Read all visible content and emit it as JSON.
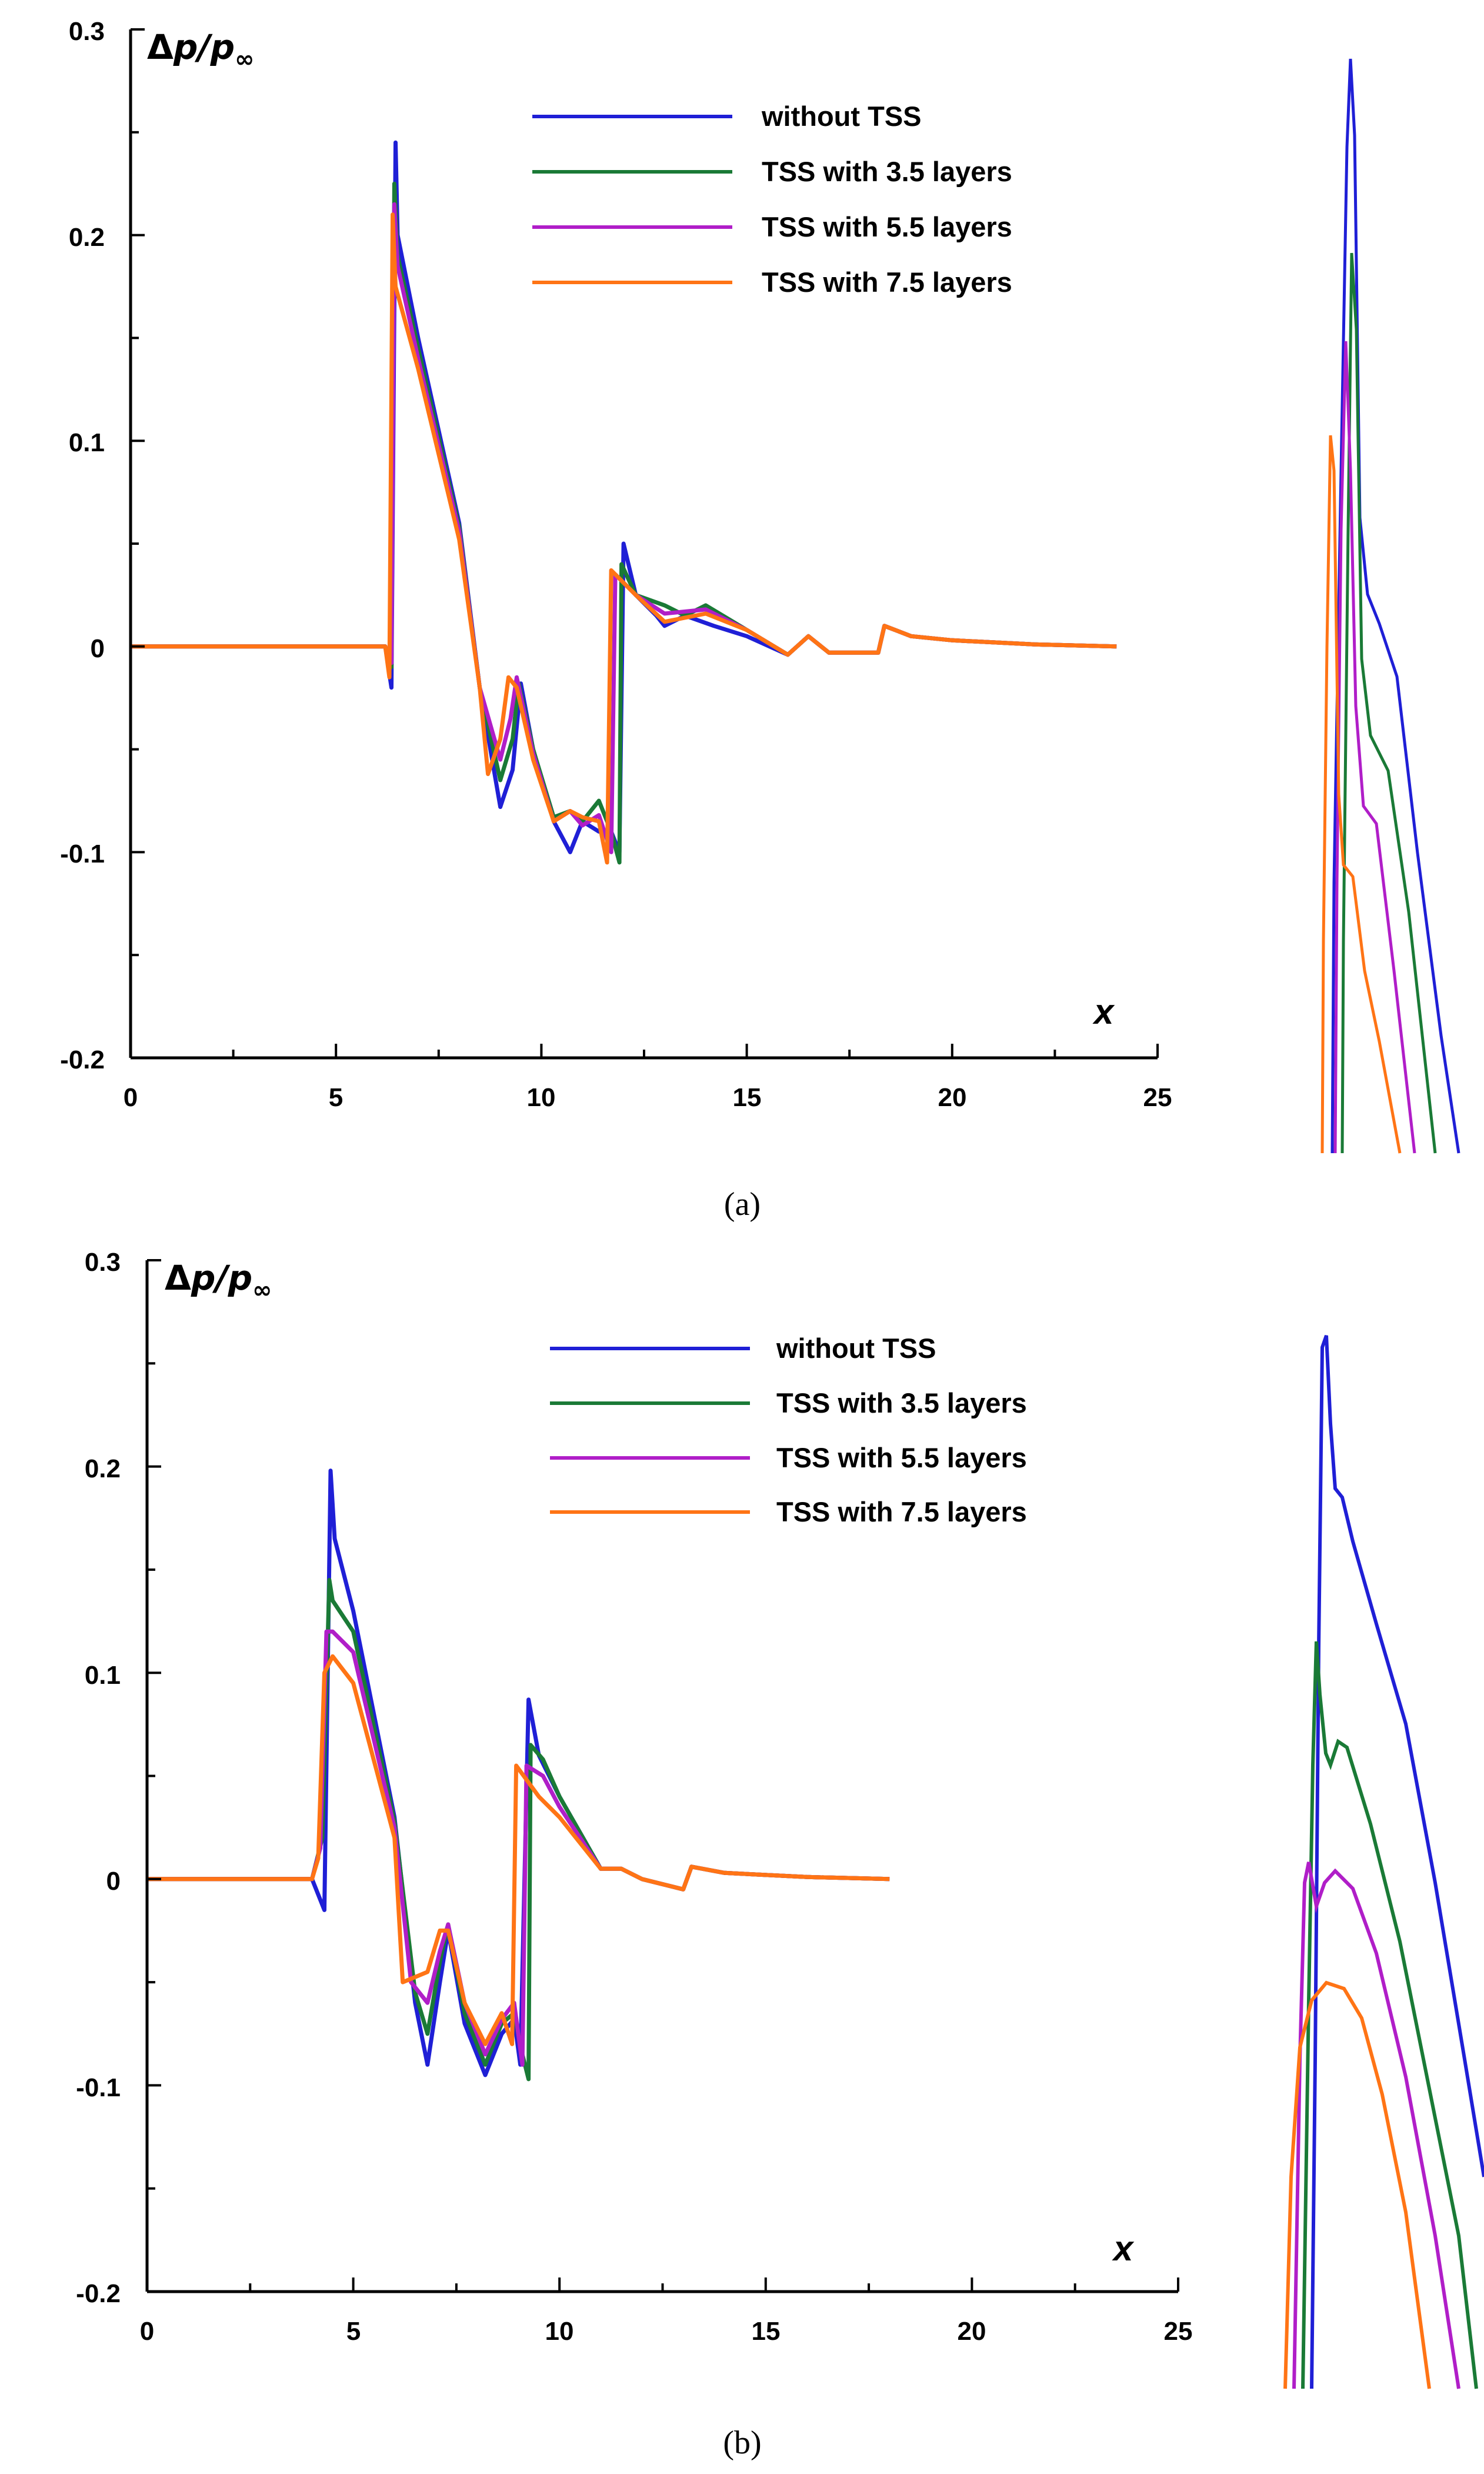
{
  "chart_data": [
    {
      "type": "line",
      "panel": "a",
      "caption": "(a)",
      "ylabel": {
        "delta": "Δ",
        "p": "p",
        "slash": "/",
        "p2": "p",
        "sub": "∞"
      },
      "xlabel": "x",
      "xlim": [
        0,
        25
      ],
      "ylim": [
        -0.2,
        0.3
      ],
      "xticks": [
        "0",
        "5",
        "10",
        "15",
        "20",
        "25"
      ],
      "yticks": [
        "0.3",
        "0.2",
        "0.1",
        "0",
        "-0.1",
        "-0.2"
      ],
      "legend_position": "top-right",
      "series": [
        {
          "name": "without TSS",
          "color": "#1f1fd6",
          "points": [
            [
              0,
              0
            ],
            [
              6.2,
              0
            ],
            [
              6.35,
              -0.02
            ],
            [
              6.45,
              0.245
            ],
            [
              6.5,
              0.2
            ],
            [
              7,
              0.15
            ],
            [
              8,
              0.06
            ],
            [
              8.5,
              -0.02
            ],
            [
              9,
              -0.078
            ],
            [
              9.3,
              -0.06
            ],
            [
              9.5,
              -0.018
            ],
            [
              9.8,
              -0.05
            ],
            [
              10.3,
              -0.085
            ],
            [
              10.7,
              -0.1
            ],
            [
              11,
              -0.085
            ],
            [
              11.4,
              -0.09
            ],
            [
              11.7,
              -0.09
            ],
            [
              11.9,
              -0.1
            ],
            [
              12,
              0.05
            ],
            [
              12.3,
              0.025
            ],
            [
              12.8,
              0.015
            ],
            [
              13,
              0.01
            ],
            [
              13.5,
              0.015
            ],
            [
              14.2,
              0.01
            ],
            [
              15,
              0.005
            ],
            [
              16,
              -0.004
            ],
            [
              16.5,
              0.005
            ],
            [
              17,
              -0.003
            ],
            [
              18.2,
              -0.003
            ],
            [
              18.35,
              0.01
            ],
            [
              19,
              0.005
            ],
            [
              20,
              0.003
            ],
            [
              22,
              0.001
            ],
            [
              24,
              0
            ]
          ]
        },
        {
          "name": "TSS with 3.5 layers",
          "color": "#1a7a36",
          "points": [
            [
              0,
              0
            ],
            [
              6.2,
              0
            ],
            [
              6.35,
              -0.01
            ],
            [
              6.42,
              0.225
            ],
            [
              6.5,
              0.19
            ],
            [
              7,
              0.145
            ],
            [
              8,
              0.058
            ],
            [
              8.5,
              -0.02
            ],
            [
              9,
              -0.065
            ],
            [
              9.3,
              -0.045
            ],
            [
              9.45,
              -0.018
            ],
            [
              9.8,
              -0.05
            ],
            [
              10.3,
              -0.083
            ],
            [
              10.7,
              -0.08
            ],
            [
              11,
              -0.085
            ],
            [
              11.4,
              -0.075
            ],
            [
              11.7,
              -0.09
            ],
            [
              11.9,
              -0.105
            ],
            [
              11.95,
              0.04
            ],
            [
              12.3,
              0.025
            ],
            [
              13,
              0.02
            ],
            [
              13.5,
              0.015
            ],
            [
              14,
              0.02
            ],
            [
              15,
              0.008
            ],
            [
              16,
              -0.004
            ],
            [
              16.5,
              0.005
            ],
            [
              17,
              -0.003
            ],
            [
              18.2,
              -0.003
            ],
            [
              18.35,
              0.01
            ],
            [
              19,
              0.005
            ],
            [
              20,
              0.003
            ],
            [
              22,
              0.001
            ],
            [
              24,
              0
            ]
          ]
        },
        {
          "name": "TSS with 5.5 layers",
          "color": "#b01ec8",
          "points": [
            [
              0,
              0
            ],
            [
              6.2,
              0
            ],
            [
              6.35,
              -0.008
            ],
            [
              6.42,
              0.215
            ],
            [
              6.5,
              0.185
            ],
            [
              7,
              0.14
            ],
            [
              8,
              0.056
            ],
            [
              8.5,
              -0.02
            ],
            [
              9,
              -0.055
            ],
            [
              9.25,
              -0.035
            ],
            [
              9.4,
              -0.015
            ],
            [
              9.8,
              -0.052
            ],
            [
              10.3,
              -0.085
            ],
            [
              10.7,
              -0.08
            ],
            [
              11,
              -0.087
            ],
            [
              11.4,
              -0.082
            ],
            [
              11.7,
              -0.1
            ],
            [
              11.8,
              0.035
            ],
            [
              12.3,
              0.025
            ],
            [
              13,
              0.016
            ],
            [
              14,
              0.018
            ],
            [
              15,
              0.008
            ],
            [
              16,
              -0.004
            ],
            [
              16.5,
              0.005
            ],
            [
              17,
              -0.003
            ],
            [
              18.2,
              -0.003
            ],
            [
              18.35,
              0.01
            ],
            [
              19,
              0.005
            ],
            [
              20,
              0.003
            ],
            [
              22,
              0.001
            ],
            [
              24,
              0
            ]
          ]
        },
        {
          "name": "TSS with 7.5 layers",
          "color": "#ff7415",
          "points": [
            [
              0,
              0
            ],
            [
              6.2,
              0
            ],
            [
              6.3,
              -0.015
            ],
            [
              6.38,
              0.21
            ],
            [
              6.45,
              0.175
            ],
            [
              7,
              0.135
            ],
            [
              8,
              0.052
            ],
            [
              8.5,
              -0.02
            ],
            [
              8.7,
              -0.062
            ],
            [
              9,
              -0.045
            ],
            [
              9.2,
              -0.015
            ],
            [
              9.4,
              -0.02
            ],
            [
              9.8,
              -0.055
            ],
            [
              10.3,
              -0.085
            ],
            [
              10.7,
              -0.08
            ],
            [
              11,
              -0.083
            ],
            [
              11.4,
              -0.085
            ],
            [
              11.6,
              -0.105
            ],
            [
              11.7,
              0.037
            ],
            [
              12.3,
              0.025
            ],
            [
              13,
              0.012
            ],
            [
              14,
              0.016
            ],
            [
              15,
              0.008
            ],
            [
              16,
              -0.004
            ],
            [
              16.5,
              0.005
            ],
            [
              17,
              -0.003
            ],
            [
              18.2,
              -0.003
            ],
            [
              18.35,
              0.01
            ],
            [
              19,
              0.005
            ],
            [
              20,
              0.003
            ],
            [
              22,
              0.001
            ],
            [
              24,
              0
            ]
          ]
        }
      ]
    },
    {
      "type": "line",
      "panel": "b",
      "caption": "(b)",
      "ylabel": {
        "delta": "Δ",
        "p": "p",
        "slash": "/",
        "p2": "p",
        "sub": "∞"
      },
      "xlabel": "x",
      "xlim": [
        0,
        25
      ],
      "ylim": [
        -0.2,
        0.3
      ],
      "xticks": [
        "0",
        "5",
        "10",
        "15",
        "20",
        "25"
      ],
      "yticks": [
        "0.3",
        "0.2",
        "0.1",
        "0",
        "-0.1",
        "-0.2"
      ],
      "legend_position": "top-right",
      "series": [
        {
          "name": "without TSS",
          "color": "#1f1fd6",
          "points": [
            [
              0,
              0
            ],
            [
              4,
              0
            ],
            [
              4.3,
              -0.015
            ],
            [
              4.45,
              0.198
            ],
            [
              4.55,
              0.165
            ],
            [
              5,
              0.13
            ],
            [
              6,
              0.03
            ],
            [
              6.5,
              -0.06
            ],
            [
              6.8,
              -0.09
            ],
            [
              7.1,
              -0.05
            ],
            [
              7.3,
              -0.025
            ],
            [
              7.7,
              -0.07
            ],
            [
              8.2,
              -0.095
            ],
            [
              8.6,
              -0.075
            ],
            [
              8.9,
              -0.068
            ],
            [
              9.05,
              -0.09
            ],
            [
              9.25,
              0.087
            ],
            [
              9.5,
              0.06
            ],
            [
              10,
              0.04
            ],
            [
              11,
              0.005
            ],
            [
              11.5,
              0.005
            ],
            [
              12,
              0
            ],
            [
              13,
              -0.005
            ],
            [
              13.2,
              0.006
            ],
            [
              14,
              0.003
            ],
            [
              16,
              0.001
            ],
            [
              18,
              0
            ]
          ]
        },
        {
          "name": "TSS with 3.5 layers",
          "color": "#1a7a36",
          "points": [
            [
              0,
              0
            ],
            [
              4,
              0
            ],
            [
              4.25,
              0.02
            ],
            [
              4.42,
              0.145
            ],
            [
              4.5,
              0.135
            ],
            [
              5,
              0.12
            ],
            [
              6,
              0.028
            ],
            [
              6.5,
              -0.055
            ],
            [
              6.8,
              -0.075
            ],
            [
              7.1,
              -0.04
            ],
            [
              7.3,
              -0.022
            ],
            [
              7.7,
              -0.065
            ],
            [
              8.2,
              -0.09
            ],
            [
              8.6,
              -0.07
            ],
            [
              8.9,
              -0.065
            ],
            [
              9.1,
              -0.085
            ],
            [
              9.25,
              -0.097
            ],
            [
              9.3,
              0.065
            ],
            [
              9.6,
              0.058
            ],
            [
              10,
              0.04
            ],
            [
              11,
              0.005
            ],
            [
              11.5,
              0.005
            ],
            [
              12,
              0
            ],
            [
              13,
              -0.005
            ],
            [
              13.2,
              0.006
            ],
            [
              14,
              0.003
            ],
            [
              16,
              0.001
            ],
            [
              18,
              0
            ]
          ]
        },
        {
          "name": "TSS with 5.5 layers",
          "color": "#b01ec8",
          "points": [
            [
              0,
              0
            ],
            [
              4,
              0
            ],
            [
              4.2,
              0.015
            ],
            [
              4.35,
              0.12
            ],
            [
              4.5,
              0.12
            ],
            [
              5,
              0.11
            ],
            [
              6,
              0.025
            ],
            [
              6.4,
              -0.05
            ],
            [
              6.8,
              -0.06
            ],
            [
              7.1,
              -0.035
            ],
            [
              7.3,
              -0.022
            ],
            [
              7.7,
              -0.06
            ],
            [
              8.2,
              -0.085
            ],
            [
              8.6,
              -0.068
            ],
            [
              8.9,
              -0.06
            ],
            [
              9.1,
              -0.09
            ],
            [
              9.2,
              0.055
            ],
            [
              9.6,
              0.05
            ],
            [
              10,
              0.035
            ],
            [
              11,
              0.005
            ],
            [
              11.5,
              0.005
            ],
            [
              12,
              0
            ],
            [
              13,
              -0.005
            ],
            [
              13.2,
              0.006
            ],
            [
              14,
              0.003
            ],
            [
              16,
              0.001
            ],
            [
              18,
              0
            ]
          ]
        },
        {
          "name": "TSS with 7.5 layers",
          "color": "#ff7415",
          "points": [
            [
              0,
              0
            ],
            [
              4,
              0
            ],
            [
              4.15,
              0.01
            ],
            [
              4.3,
              0.1
            ],
            [
              4.5,
              0.108
            ],
            [
              5,
              0.095
            ],
            [
              6,
              0.02
            ],
            [
              6.2,
              -0.05
            ],
            [
              6.8,
              -0.045
            ],
            [
              7.1,
              -0.025
            ],
            [
              7.3,
              -0.025
            ],
            [
              7.7,
              -0.06
            ],
            [
              8.2,
              -0.08
            ],
            [
              8.6,
              -0.065
            ],
            [
              8.85,
              -0.08
            ],
            [
              8.95,
              0.055
            ],
            [
              9.5,
              0.04
            ],
            [
              10,
              0.03
            ],
            [
              11,
              0.005
            ],
            [
              11.5,
              0.005
            ],
            [
              12,
              0
            ],
            [
              13,
              -0.005
            ],
            [
              13.2,
              0.006
            ],
            [
              14,
              0.003
            ],
            [
              16,
              0.001
            ],
            [
              18,
              0
            ]
          ]
        }
      ]
    }
  ]
}
